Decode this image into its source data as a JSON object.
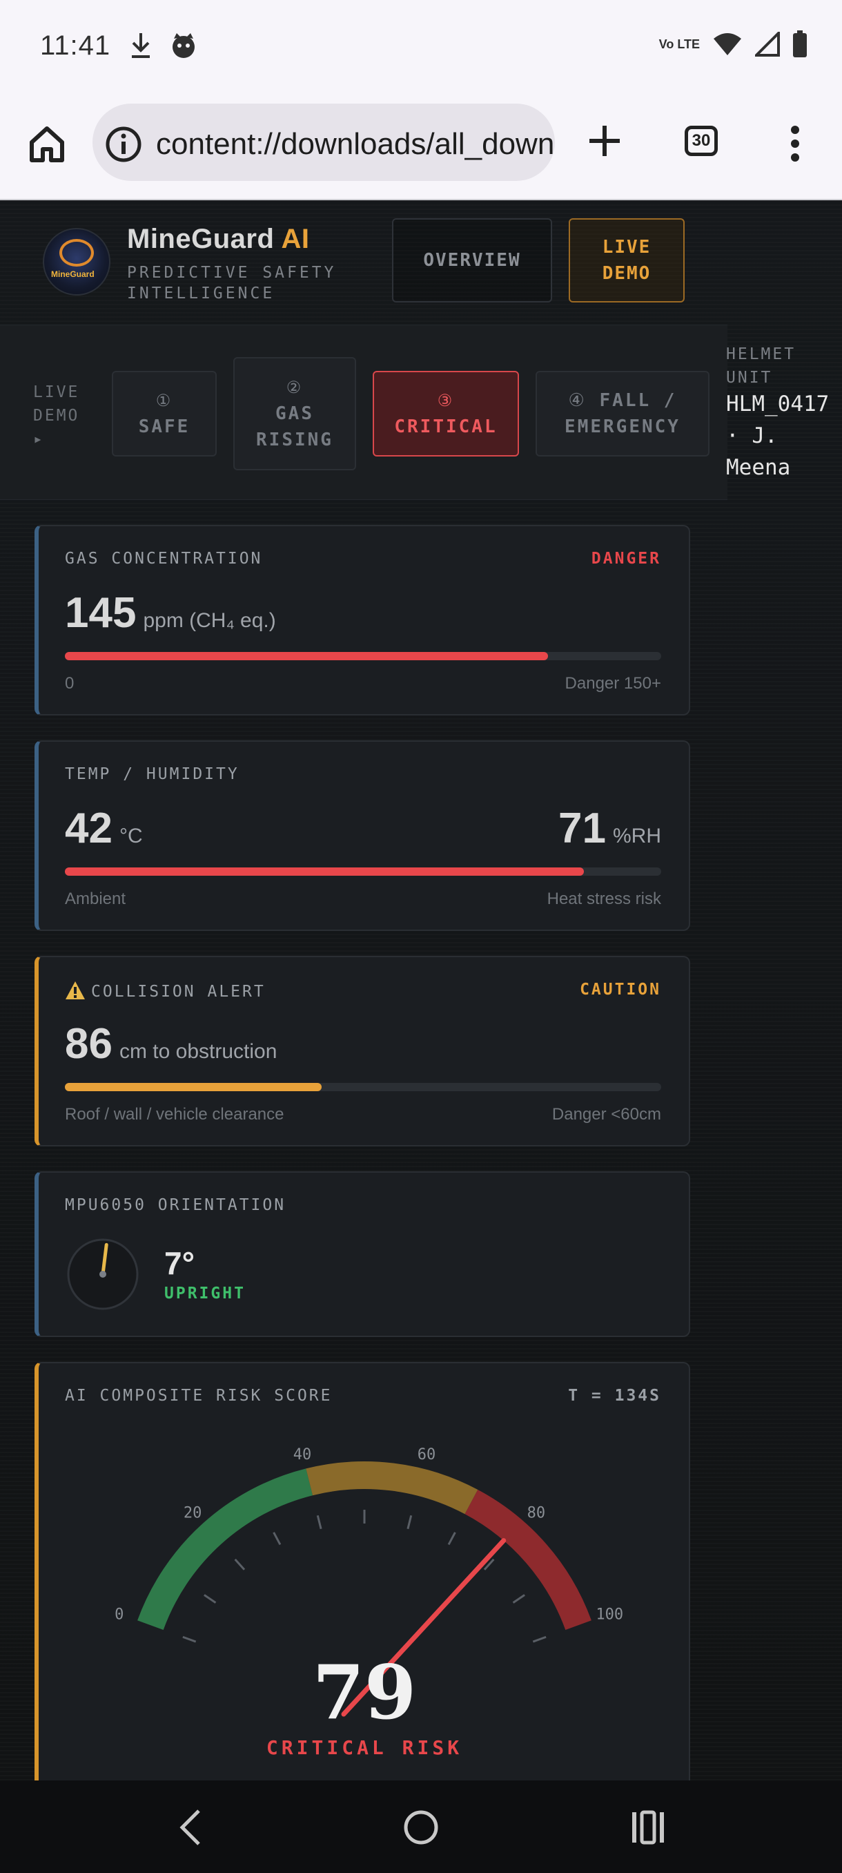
{
  "status_bar": {
    "time": "11:41",
    "network": "Vo LTE"
  },
  "browser": {
    "url": "content://downloads/all_downloads",
    "tab_count": "30"
  },
  "header": {
    "brand": "MineGuard",
    "brand_ai": " AI",
    "tagline": "PREDICTIVE SAFETY INTELLIGENCE",
    "logo_text": "MineGuard",
    "overview_button": "OVERVIEW",
    "live_demo_button": "LIVE DEMO"
  },
  "demo": {
    "label": "LIVE DEMO ▸",
    "steps": [
      {
        "num": "①",
        "label": "SAFE"
      },
      {
        "num": "②",
        "label": "GAS RISING"
      },
      {
        "num": "③",
        "label": "CRITICAL"
      },
      {
        "num": "④",
        "label": "FALL / EMERGENCY"
      }
    ],
    "active_step": 3,
    "helmet_caption": "HELMET UNIT",
    "helmet_id": "HLM_0417 · J. Meena"
  },
  "gas": {
    "title": "GAS CONCENTRATION",
    "status": "DANGER",
    "value": "145",
    "unit": "ppm (CH₄ eq.)",
    "level": 0.81,
    "min_label": "0",
    "max_label": "Danger 150+"
  },
  "temp": {
    "title": "TEMP / HUMIDITY",
    "temp_value": "42",
    "temp_unit": "°C",
    "humidity_value": "71",
    "humidity_unit": "%RH",
    "level": 0.87,
    "left_label": "Ambient",
    "right_label": "Heat stress risk"
  },
  "collision": {
    "title": "COLLISION ALERT",
    "status": "CAUTION",
    "value": "86",
    "unit": "cm to obstruction",
    "level": 0.43,
    "left_label": "Roof / wall / vehicle clearance",
    "right_label": "Danger <60cm"
  },
  "orientation": {
    "title": "MPU6050 ORIENTATION",
    "value": "7°",
    "state": "UPRIGHT",
    "tilt_deg": 7
  },
  "risk": {
    "title": "AI COMPOSITE RISK SCORE",
    "time": "T = 134S",
    "score": "79",
    "score_value": 79,
    "verdict": "CRITICAL RISK",
    "ticks": [
      "0",
      "20",
      "40",
      "60",
      "80",
      "100"
    ]
  },
  "colors": {
    "danger": "#e8474b",
    "caution": "#e8a23a",
    "ok": "#3fbf6b",
    "blue_accent": "#3c6184"
  }
}
